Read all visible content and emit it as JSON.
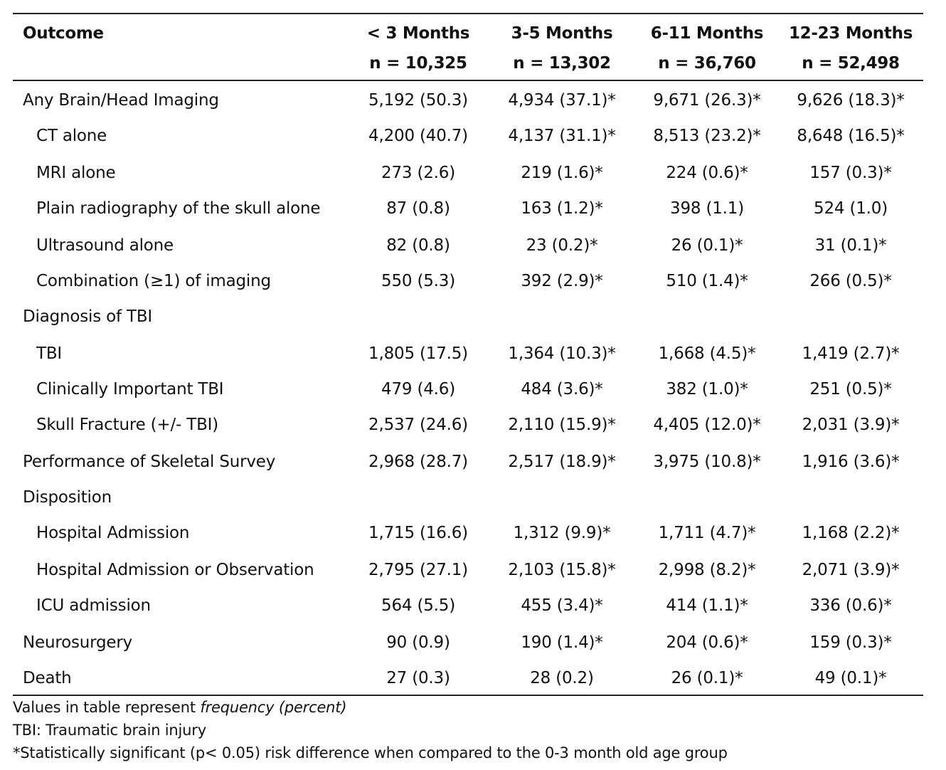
{
  "table": {
    "header": {
      "outcome": "Outcome",
      "columns": [
        {
          "label": "< 3 Months",
          "n": "n = 10,325"
        },
        {
          "label": "3-5 Months",
          "n": "n = 13,302"
        },
        {
          "label": "6-11 Months",
          "n": "n = 36,760"
        },
        {
          "label": "12-23 Months",
          "n": "n = 52,498"
        }
      ]
    },
    "rows": [
      {
        "label": "Any Brain/Head Imaging",
        "level": 0,
        "values": [
          "5,192 (50.3)",
          "4,934 (37.1)*",
          "9,671 (26.3)*",
          "9,626 (18.3)*"
        ]
      },
      {
        "label": "CT alone",
        "level": 1,
        "values": [
          "4,200 (40.7)",
          "4,137 (31.1)*",
          "8,513 (23.2)*",
          "8,648 (16.5)*"
        ]
      },
      {
        "label": "MRI alone",
        "level": 1,
        "values": [
          "273 (2.6)",
          "219 (1.6)*",
          "224 (0.6)*",
          "157 (0.3)*"
        ]
      },
      {
        "label": "Plain radiography of the skull alone",
        "level": 1,
        "values": [
          "87 (0.8)",
          "163 (1.2)*",
          "398 (1.1)",
          "524 (1.0)"
        ]
      },
      {
        "label": "Ultrasound alone",
        "level": 1,
        "values": [
          "82 (0.8)",
          "23 (0.2)*",
          "26 (0.1)*",
          "31 (0.1)*"
        ]
      },
      {
        "label": "Combination (≥1) of imaging",
        "level": 1,
        "values": [
          "550 (5.3)",
          "392 (2.9)*",
          "510 (1.4)*",
          "266 (0.5)*"
        ]
      },
      {
        "label": "Diagnosis of TBI",
        "level": 0,
        "values": [
          "",
          "",
          "",
          ""
        ]
      },
      {
        "label": "TBI",
        "level": 1,
        "values": [
          "1,805 (17.5)",
          "1,364 (10.3)*",
          "1,668 (4.5)*",
          "1,419 (2.7)*"
        ]
      },
      {
        "label": "Clinically Important TBI",
        "level": 1,
        "values": [
          "479 (4.6)",
          "484 (3.6)*",
          "382 (1.0)*",
          "251 (0.5)*"
        ]
      },
      {
        "label": "Skull Fracture (+/- TBI)",
        "level": 1,
        "values": [
          "2,537 (24.6)",
          "2,110 (15.9)*",
          "4,405 (12.0)*",
          "2,031 (3.9)*"
        ]
      },
      {
        "label": "Performance of Skeletal Survey",
        "level": 0,
        "values": [
          "2,968 (28.7)",
          "2,517 (18.9)*",
          "3,975 (10.8)*",
          "1,916 (3.6)*"
        ]
      },
      {
        "label": "Disposition",
        "level": 0,
        "values": [
          "",
          "",
          "",
          ""
        ]
      },
      {
        "label": "Hospital Admission",
        "level": 1,
        "values": [
          "1,715 (16.6)",
          "1,312 (9.9)*",
          "1,711 (4.7)*",
          "1,168 (2.2)*"
        ]
      },
      {
        "label": "Hospital Admission or Observation",
        "level": 1,
        "values": [
          "2,795 (27.1)",
          "2,103 (15.8)*",
          "2,998 (8.2)*",
          "2,071 (3.9)*"
        ]
      },
      {
        "label": "ICU admission",
        "level": 1,
        "values": [
          "564 (5.5)",
          "455 (3.4)*",
          "414 (1.1)*",
          "336 (0.6)*"
        ]
      },
      {
        "label": "Neurosurgery",
        "level": 0,
        "values": [
          "90 (0.9)",
          "190 (1.4)*",
          "204 (0.6)*",
          "159 (0.3)*"
        ]
      },
      {
        "label": "Death",
        "level": 0,
        "values": [
          "27 (0.3)",
          "28 (0.2)",
          "26 (0.1)*",
          "49 (0.1)*"
        ]
      }
    ]
  },
  "notes": {
    "values_prefix": "Values in table represent ",
    "values_italic": "frequency (percent)",
    "tbi_definition": "TBI: Traumatic brain injury",
    "significance": "*Statistically significant (p< 0.05) risk difference when compared to the 0-3 month old age group"
  }
}
